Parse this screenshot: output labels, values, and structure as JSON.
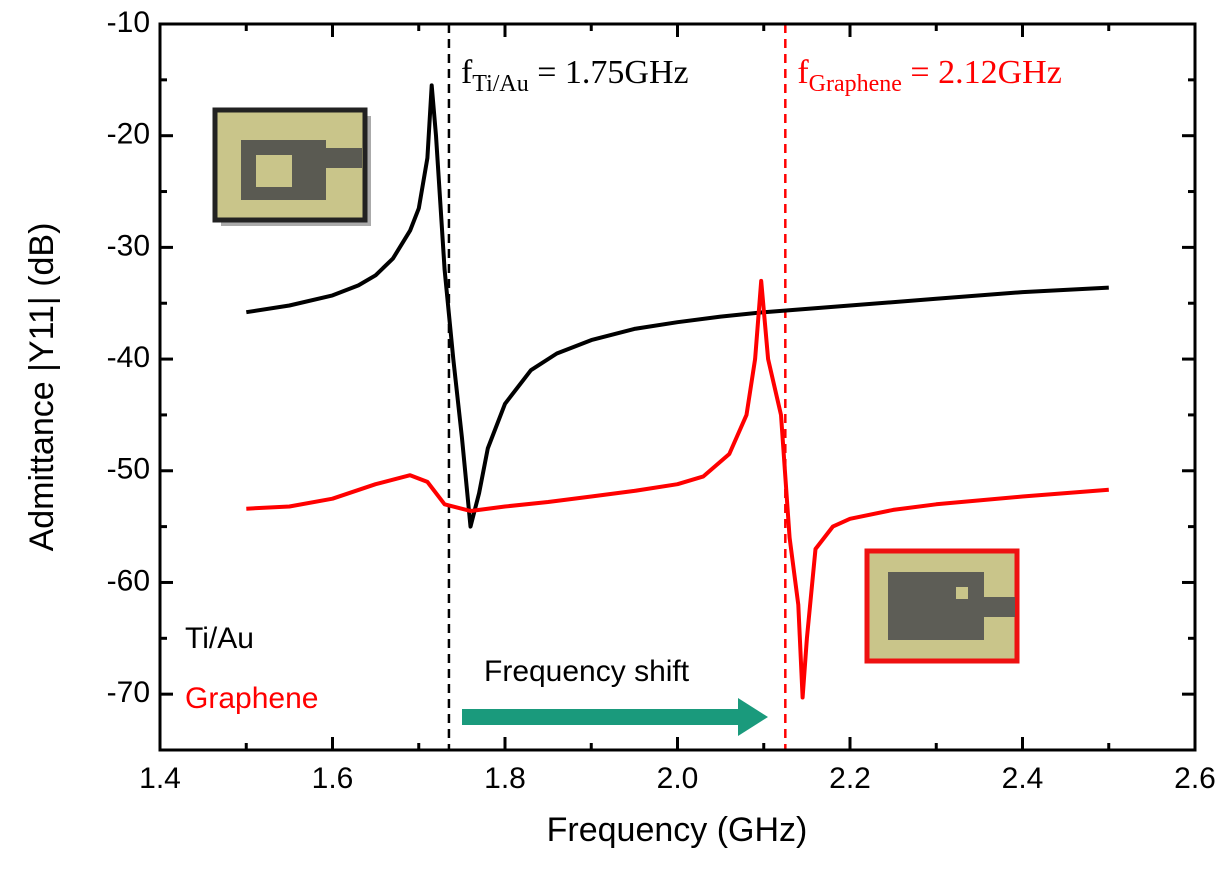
{
  "chart_data": {
    "type": "line",
    "x_label": "Frequency (GHz)",
    "y_label": "Admittance |Y11| (dB)",
    "xlim": [
      1.4,
      2.6
    ],
    "ylim": [
      -75,
      -10
    ],
    "xticks": [
      1.4,
      1.6,
      1.8,
      {
        "value": 2,
        "label": "2.0"
      },
      2.2,
      2.4,
      2.6
    ],
    "yticks": [
      -70,
      -60,
      -50,
      -40,
      -30,
      -20,
      -10
    ],
    "series": [
      {
        "name": "Ti/Au",
        "color": "#000000",
        "x": [
          1.5,
          1.55,
          1.6,
          1.63,
          1.65,
          1.67,
          1.69,
          1.7,
          1.71,
          1.715,
          1.72,
          1.73,
          1.74,
          1.75,
          1.76,
          1.77,
          1.78,
          1.8,
          1.83,
          1.86,
          1.9,
          1.95,
          2.0,
          2.05,
          2.1,
          2.2,
          2.3,
          2.4,
          2.5
        ],
        "values": [
          -35.8,
          -35.2,
          -34.3,
          -33.4,
          -32.5,
          -31,
          -28.5,
          -26.5,
          -22,
          -15.5,
          -20,
          -32,
          -40,
          -47,
          -55,
          -52,
          -48,
          -44,
          -41,
          -39.5,
          -38.3,
          -37.3,
          -36.7,
          -36.2,
          -35.8,
          -35.2,
          -34.6,
          -34.0,
          -33.6
        ]
      },
      {
        "name": "Graphene",
        "color": "#ff0000",
        "x": [
          1.5,
          1.55,
          1.6,
          1.65,
          1.69,
          1.71,
          1.73,
          1.76,
          1.8,
          1.85,
          1.9,
          1.95,
          2.0,
          2.03,
          2.06,
          2.08,
          2.09,
          2.097,
          2.105,
          2.12,
          2.13,
          2.14,
          2.145,
          2.15,
          2.16,
          2.18,
          2.2,
          2.25,
          2.3,
          2.4,
          2.5
        ],
        "values": [
          -53.4,
          -53.2,
          -52.5,
          -51.2,
          -50.4,
          -51,
          -53,
          -53.6,
          -53.2,
          -52.8,
          -52.3,
          -51.8,
          -51.2,
          -50.5,
          -48.5,
          -45,
          -40,
          -33,
          -40,
          -45,
          -56,
          -62,
          -70.3,
          -65,
          -57,
          -55,
          -54.3,
          -53.5,
          -53,
          -52.3,
          -51.7
        ]
      }
    ],
    "reference_lines": [
      {
        "x": 1.735,
        "color": "#000000",
        "label": [
          "f",
          "Ti/Au",
          " = 1.75GHz"
        ]
      },
      {
        "x": 2.125,
        "color": "#ff0000",
        "label": [
          "f",
          "Graphene",
          " = 2.12GHz"
        ]
      }
    ],
    "arrow_label": "Frequency shift"
  }
}
